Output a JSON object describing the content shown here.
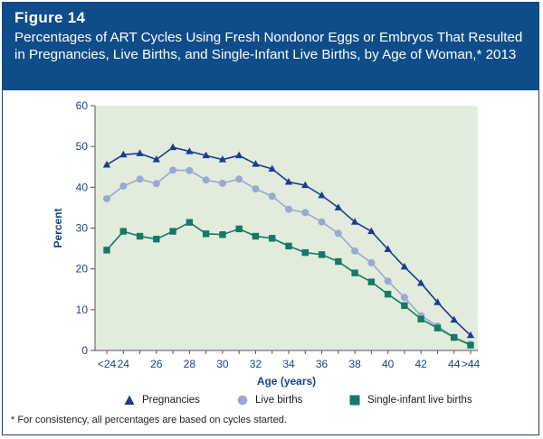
{
  "figure_label": "Figure 14",
  "title": "Percentages of ART Cycles Using Fresh Nondonor Eggs or Embryos That Resulted in Pregnancies, Live Births, and Single-Infant Live Births, by Age of Woman,* 2013",
  "footnote": "* For consistency, all percentages are based on cycles started.",
  "colors": {
    "header_bg": "#0f4d8a",
    "plot_bg": "#e2ecdd",
    "pregnancies": "#1a3d8f",
    "live_births": "#9aa8d2",
    "single_infant": "#137a64",
    "axis_text": "#17458a"
  },
  "legend": [
    {
      "name": "Pregnancies",
      "icon": "triangle-icon"
    },
    {
      "name": "Live births",
      "icon": "circle-icon"
    },
    {
      "name": "Single-infant live births",
      "icon": "square-icon"
    }
  ],
  "chart_data": {
    "type": "line",
    "xlabel": "Age (years)",
    "ylabel": "Percent",
    "ylim": [
      0,
      60
    ],
    "yticks": [
      0,
      10,
      20,
      30,
      40,
      50,
      60
    ],
    "x": [
      "<24",
      "24",
      "25",
      "26",
      "27",
      "28",
      "29",
      "30",
      "31",
      "32",
      "33",
      "34",
      "35",
      "36",
      "37",
      "38",
      "39",
      "40",
      "41",
      "42",
      "43",
      "44",
      ">44"
    ],
    "x_tick_labels": [
      "<24",
      "24",
      "26",
      "28",
      "30",
      "32",
      "34",
      "36",
      "38",
      "40",
      "42",
      "44",
      ">44"
    ],
    "series": [
      {
        "name": "Pregnancies",
        "marker": "triangle",
        "values": [
          45.5,
          48.0,
          48.3,
          46.8,
          49.8,
          48.8,
          47.8,
          46.8,
          47.8,
          45.7,
          44.5,
          41.3,
          40.5,
          38.0,
          35.0,
          31.5,
          29.2,
          24.8,
          20.5,
          16.5,
          11.8,
          7.5,
          3.7
        ]
      },
      {
        "name": "Live births",
        "marker": "circle",
        "values": [
          37.2,
          40.3,
          42.0,
          40.9,
          44.2,
          44.1,
          41.8,
          41.0,
          42.0,
          39.6,
          37.8,
          34.6,
          33.8,
          31.5,
          28.7,
          24.4,
          21.5,
          17.0,
          13.0,
          8.5,
          6.0,
          3.2,
          1.5
        ]
      },
      {
        "name": "Single-infant live births",
        "marker": "square",
        "values": [
          24.6,
          29.2,
          28.0,
          27.3,
          29.2,
          31.4,
          28.6,
          28.4,
          29.8,
          28.0,
          27.5,
          25.6,
          24.0,
          23.5,
          21.8,
          19.0,
          16.8,
          13.8,
          11.0,
          7.7,
          5.5,
          3.2,
          1.3
        ]
      }
    ]
  }
}
